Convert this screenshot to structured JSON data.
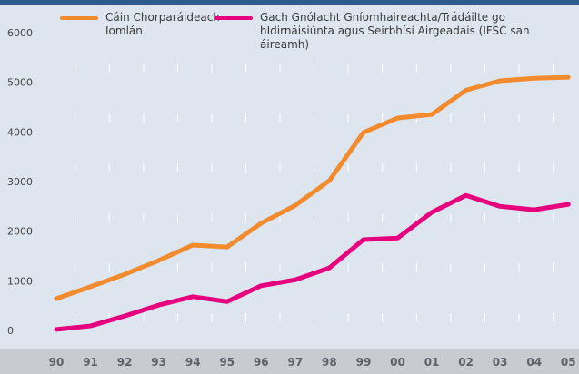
{
  "chart_data": {
    "type": "line",
    "categories": [
      "90",
      "91",
      "92",
      "93",
      "94",
      "95",
      "96",
      "97",
      "98",
      "99",
      "00",
      "01",
      "02",
      "03",
      "04",
      "05"
    ],
    "series": [
      {
        "name": "Cáin Chorparáideach Iomlán",
        "color": "#f28a2e",
        "values": [
          750,
          990,
          1240,
          1520,
          1830,
          1790,
          2270,
          2630,
          3130,
          4100,
          4390,
          4460,
          4950,
          5140,
          5190,
          5210
        ]
      },
      {
        "name": "Gach Gnólacht Gníomhaireachta/Trádáilte go hIdirnáisiúnta agus Seirbhísí Airgeadais (IFSC san áireamh)",
        "color": "#e6007e",
        "values": [
          130,
          200,
          400,
          620,
          790,
          690,
          1010,
          1130,
          1370,
          1940,
          1970,
          2490,
          2830,
          2610,
          2540,
          2650
        ]
      }
    ],
    "ylim": [
      0,
      6000
    ],
    "yticks": [
      0,
      1000,
      2000,
      3000,
      4000,
      5000,
      6000
    ]
  }
}
